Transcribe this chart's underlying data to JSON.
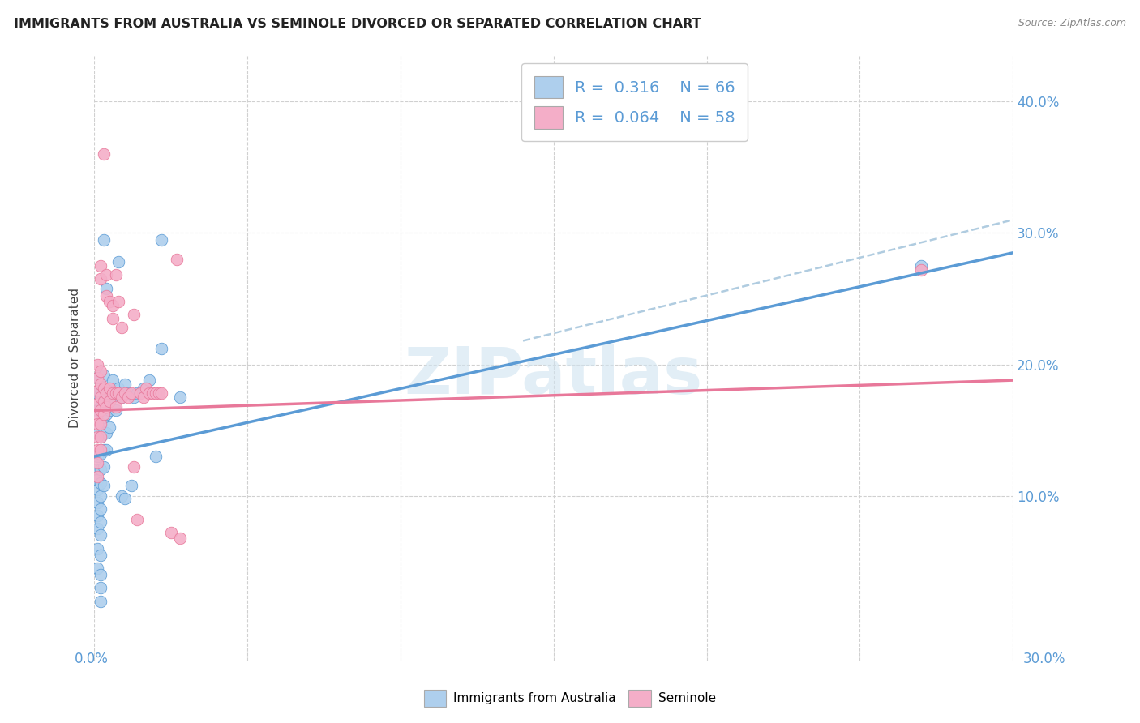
{
  "title": "IMMIGRANTS FROM AUSTRALIA VS SEMINOLE DIVORCED OR SEPARATED CORRELATION CHART",
  "source": "Source: ZipAtlas.com",
  "ylabel": "Divorced or Separated",
  "ylabel_right_ticks": [
    "10.0%",
    "20.0%",
    "30.0%",
    "40.0%"
  ],
  "ylabel_right_values": [
    0.1,
    0.2,
    0.3,
    0.4
  ],
  "xmin": 0.0,
  "xmax": 0.3,
  "ymin": -0.025,
  "ymax": 0.435,
  "legend1_R": "0.316",
  "legend1_N": "66",
  "legend2_R": "0.064",
  "legend2_N": "58",
  "color_blue": "#aecfed",
  "color_pink": "#f4aec8",
  "line_blue": "#5b9bd5",
  "line_pink": "#e8789a",
  "line_dashed_color": "#b0cce0",
  "watermark_text": "ZIPatlas",
  "blue_scatter": [
    [
      0.001,
      0.13
    ],
    [
      0.001,
      0.12
    ],
    [
      0.001,
      0.112
    ],
    [
      0.001,
      0.105
    ],
    [
      0.001,
      0.148
    ],
    [
      0.001,
      0.095
    ],
    [
      0.001,
      0.085
    ],
    [
      0.001,
      0.075
    ],
    [
      0.001,
      0.06
    ],
    [
      0.001,
      0.045
    ],
    [
      0.001,
      0.165
    ],
    [
      0.001,
      0.178
    ],
    [
      0.001,
      0.19
    ],
    [
      0.002,
      0.155
    ],
    [
      0.002,
      0.168
    ],
    [
      0.002,
      0.178
    ],
    [
      0.002,
      0.145
    ],
    [
      0.002,
      0.132
    ],
    [
      0.002,
      0.12
    ],
    [
      0.002,
      0.11
    ],
    [
      0.002,
      0.1
    ],
    [
      0.002,
      0.09
    ],
    [
      0.002,
      0.08
    ],
    [
      0.002,
      0.07
    ],
    [
      0.002,
      0.055
    ],
    [
      0.002,
      0.04
    ],
    [
      0.002,
      0.03
    ],
    [
      0.002,
      0.02
    ],
    [
      0.003,
      0.16
    ],
    [
      0.003,
      0.172
    ],
    [
      0.003,
      0.182
    ],
    [
      0.003,
      0.192
    ],
    [
      0.003,
      0.148
    ],
    [
      0.003,
      0.135
    ],
    [
      0.003,
      0.122
    ],
    [
      0.003,
      0.108
    ],
    [
      0.003,
      0.295
    ],
    [
      0.004,
      0.258
    ],
    [
      0.004,
      0.175
    ],
    [
      0.004,
      0.162
    ],
    [
      0.004,
      0.148
    ],
    [
      0.004,
      0.135
    ],
    [
      0.005,
      0.18
    ],
    [
      0.005,
      0.165
    ],
    [
      0.005,
      0.152
    ],
    [
      0.006,
      0.175
    ],
    [
      0.006,
      0.188
    ],
    [
      0.007,
      0.178
    ],
    [
      0.007,
      0.165
    ],
    [
      0.008,
      0.278
    ],
    [
      0.008,
      0.182
    ],
    [
      0.009,
      0.175
    ],
    [
      0.009,
      0.1
    ],
    [
      0.01,
      0.185
    ],
    [
      0.01,
      0.098
    ],
    [
      0.011,
      0.178
    ],
    [
      0.012,
      0.108
    ],
    [
      0.013,
      0.175
    ],
    [
      0.014,
      0.178
    ],
    [
      0.016,
      0.182
    ],
    [
      0.018,
      0.188
    ],
    [
      0.02,
      0.13
    ],
    [
      0.022,
      0.295
    ],
    [
      0.022,
      0.212
    ],
    [
      0.028,
      0.175
    ],
    [
      0.27,
      0.275
    ]
  ],
  "pink_scatter": [
    [
      0.001,
      0.17
    ],
    [
      0.001,
      0.162
    ],
    [
      0.001,
      0.155
    ],
    [
      0.001,
      0.145
    ],
    [
      0.001,
      0.135
    ],
    [
      0.001,
      0.125
    ],
    [
      0.001,
      0.115
    ],
    [
      0.001,
      0.18
    ],
    [
      0.001,
      0.19
    ],
    [
      0.001,
      0.2
    ],
    [
      0.002,
      0.175
    ],
    [
      0.002,
      0.165
    ],
    [
      0.002,
      0.155
    ],
    [
      0.002,
      0.145
    ],
    [
      0.002,
      0.135
    ],
    [
      0.002,
      0.185
    ],
    [
      0.002,
      0.195
    ],
    [
      0.002,
      0.265
    ],
    [
      0.002,
      0.275
    ],
    [
      0.003,
      0.36
    ],
    [
      0.003,
      0.172
    ],
    [
      0.003,
      0.182
    ],
    [
      0.003,
      0.162
    ],
    [
      0.004,
      0.268
    ],
    [
      0.004,
      0.252
    ],
    [
      0.004,
      0.178
    ],
    [
      0.004,
      0.168
    ],
    [
      0.005,
      0.248
    ],
    [
      0.005,
      0.182
    ],
    [
      0.005,
      0.172
    ],
    [
      0.006,
      0.245
    ],
    [
      0.006,
      0.235
    ],
    [
      0.006,
      0.178
    ],
    [
      0.007,
      0.268
    ],
    [
      0.007,
      0.178
    ],
    [
      0.007,
      0.168
    ],
    [
      0.008,
      0.248
    ],
    [
      0.008,
      0.178
    ],
    [
      0.009,
      0.228
    ],
    [
      0.009,
      0.175
    ],
    [
      0.01,
      0.178
    ],
    [
      0.011,
      0.175
    ],
    [
      0.012,
      0.178
    ],
    [
      0.013,
      0.238
    ],
    [
      0.013,
      0.122
    ],
    [
      0.014,
      0.082
    ],
    [
      0.015,
      0.178
    ],
    [
      0.016,
      0.175
    ],
    [
      0.017,
      0.182
    ],
    [
      0.018,
      0.178
    ],
    [
      0.019,
      0.178
    ],
    [
      0.02,
      0.178
    ],
    [
      0.021,
      0.178
    ],
    [
      0.022,
      0.178
    ],
    [
      0.025,
      0.072
    ],
    [
      0.027,
      0.28
    ],
    [
      0.028,
      0.068
    ],
    [
      0.27,
      0.272
    ]
  ],
  "blue_line_x": [
    0.0,
    0.3
  ],
  "blue_line_y": [
    0.13,
    0.285
  ],
  "pink_line_x": [
    0.0,
    0.3
  ],
  "pink_line_y": [
    0.165,
    0.188
  ],
  "dashed_line_x": [
    0.14,
    0.3
  ],
  "dashed_line_y": [
    0.218,
    0.31
  ]
}
